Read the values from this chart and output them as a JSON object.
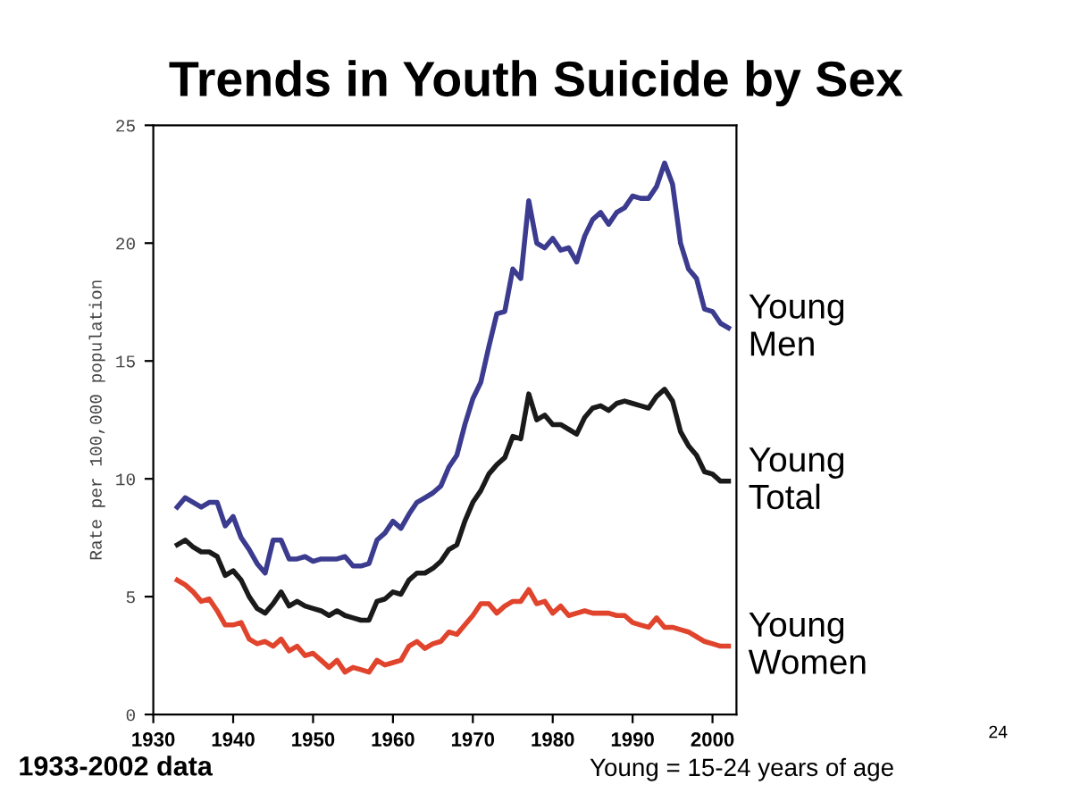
{
  "chart_data": {
    "type": "line",
    "title": "Trends in Youth Suicide by Sex",
    "ylabel": "Rate per 100,000 population",
    "x": [
      1933,
      1934,
      1935,
      1936,
      1937,
      1938,
      1939,
      1940,
      1941,
      1942,
      1943,
      1944,
      1945,
      1946,
      1947,
      1948,
      1949,
      1950,
      1951,
      1952,
      1953,
      1954,
      1955,
      1956,
      1957,
      1958,
      1959,
      1960,
      1961,
      1962,
      1963,
      1964,
      1965,
      1966,
      1967,
      1968,
      1969,
      1970,
      1971,
      1972,
      1973,
      1974,
      1975,
      1976,
      1977,
      1978,
      1979,
      1980,
      1981,
      1982,
      1983,
      1984,
      1985,
      1986,
      1987,
      1988,
      1989,
      1990,
      1991,
      1992,
      1993,
      1994,
      1995,
      1996,
      1997,
      1998,
      1999,
      2000,
      2001,
      2002
    ],
    "series": [
      {
        "name": "Young\nMen",
        "color": "#3b3b8f",
        "values": [
          8.8,
          9.2,
          9.0,
          8.8,
          9.0,
          9.0,
          8.0,
          8.4,
          7.5,
          7.0,
          6.4,
          6.0,
          7.4,
          7.4,
          6.6,
          6.6,
          6.7,
          6.5,
          6.6,
          6.6,
          6.6,
          6.7,
          6.3,
          6.3,
          6.4,
          7.4,
          7.7,
          8.2,
          7.9,
          8.5,
          9.0,
          9.2,
          9.4,
          9.7,
          10.5,
          11.0,
          12.3,
          13.4,
          14.1,
          15.6,
          17.0,
          17.1,
          18.9,
          18.5,
          21.8,
          20.0,
          19.8,
          20.2,
          19.7,
          19.8,
          19.2,
          20.3,
          21.0,
          21.3,
          20.8,
          21.3,
          21.5,
          22.0,
          21.9,
          21.9,
          22.4,
          23.4,
          22.5,
          20.0,
          18.9,
          18.5,
          17.2,
          17.1,
          16.6,
          16.4
        ]
      },
      {
        "name": "Young\nTotal",
        "color": "#1a1a1a",
        "values": [
          7.2,
          7.4,
          7.1,
          6.9,
          6.9,
          6.7,
          5.9,
          6.1,
          5.7,
          5.0,
          4.5,
          4.3,
          4.7,
          5.2,
          4.6,
          4.8,
          4.6,
          4.5,
          4.4,
          4.2,
          4.4,
          4.2,
          4.1,
          4.0,
          4.0,
          4.8,
          4.9,
          5.2,
          5.1,
          5.7,
          6.0,
          6.0,
          6.2,
          6.5,
          7.0,
          7.2,
          8.2,
          9.0,
          9.5,
          10.2,
          10.6,
          10.9,
          11.8,
          11.7,
          13.6,
          12.5,
          12.7,
          12.3,
          12.3,
          12.1,
          11.9,
          12.6,
          13.0,
          13.1,
          12.9,
          13.2,
          13.3,
          13.2,
          13.1,
          13.0,
          13.5,
          13.8,
          13.3,
          12.0,
          11.4,
          11.0,
          10.3,
          10.2,
          9.9,
          9.9
        ]
      },
      {
        "name": "Young\nWomen",
        "color": "#e0442c",
        "values": [
          5.7,
          5.5,
          5.2,
          4.8,
          4.9,
          4.4,
          3.8,
          3.8,
          3.9,
          3.2,
          3.0,
          3.1,
          2.9,
          3.2,
          2.7,
          2.9,
          2.5,
          2.6,
          2.3,
          2.0,
          2.3,
          1.8,
          2.0,
          1.9,
          1.8,
          2.3,
          2.1,
          2.2,
          2.3,
          2.9,
          3.1,
          2.8,
          3.0,
          3.1,
          3.5,
          3.4,
          3.8,
          4.2,
          4.7,
          4.7,
          4.3,
          4.6,
          4.8,
          4.8,
          5.3,
          4.7,
          4.8,
          4.3,
          4.6,
          4.2,
          4.3,
          4.4,
          4.3,
          4.3,
          4.3,
          4.2,
          4.2,
          3.9,
          3.8,
          3.7,
          4.1,
          3.7,
          3.7,
          3.6,
          3.5,
          3.3,
          3.1,
          3.0,
          2.9,
          2.9
        ]
      }
    ],
    "xlim": [
      1930,
      2003
    ],
    "xticks": [
      1930,
      1940,
      1950,
      1960,
      1970,
      1980,
      1990,
      2000
    ],
    "ylim": [
      0,
      25
    ],
    "yticks": [
      0,
      5,
      10,
      15,
      20,
      25
    ],
    "grid": false,
    "marker": "none",
    "line_style": "solid",
    "annotations": [
      "24",
      "1933-2002 data",
      "Young = 15-24 years of age"
    ]
  }
}
